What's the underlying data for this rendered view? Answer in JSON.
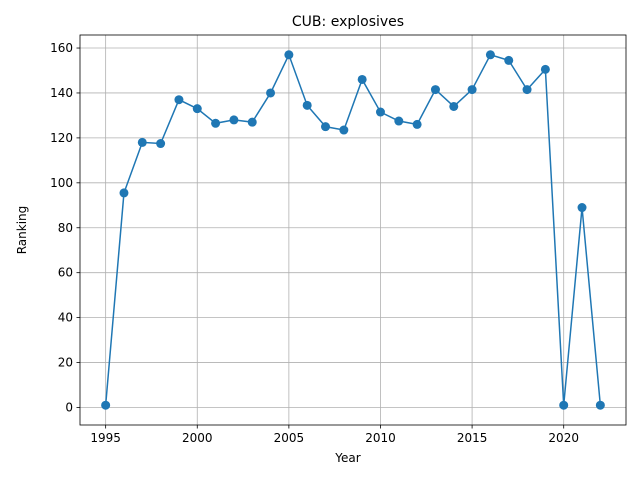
{
  "chart_data": {
    "type": "line",
    "title": "CUB: explosives",
    "xlabel": "Year",
    "ylabel": "Ranking",
    "x": [
      1995,
      1996,
      1997,
      1998,
      1999,
      2000,
      2001,
      2002,
      2003,
      2004,
      2005,
      2006,
      2007,
      2008,
      2009,
      2010,
      2011,
      2012,
      2013,
      2014,
      2015,
      2016,
      2017,
      2018,
      2019,
      2020,
      2021,
      2022
    ],
    "series": [
      {
        "values": [
          1,
          95.5,
          118,
          117.5,
          137,
          133,
          126.5,
          128,
          127,
          140,
          157,
          134.5,
          125,
          123.5,
          146,
          131.5,
          127.5,
          126,
          141.5,
          134,
          141.5,
          157,
          154.5,
          141.5,
          150.5,
          1,
          89,
          1
        ],
        "color": "#1f77b4"
      }
    ],
    "xlim": [
      1993.6,
      2023.4
    ],
    "ylim": [
      -7.8,
      165.8
    ],
    "xticks": [
      1995,
      2000,
      2005,
      2010,
      2015,
      2020
    ],
    "yticks": [
      0,
      20,
      40,
      60,
      80,
      100,
      120,
      140,
      160
    ],
    "grid": true
  }
}
